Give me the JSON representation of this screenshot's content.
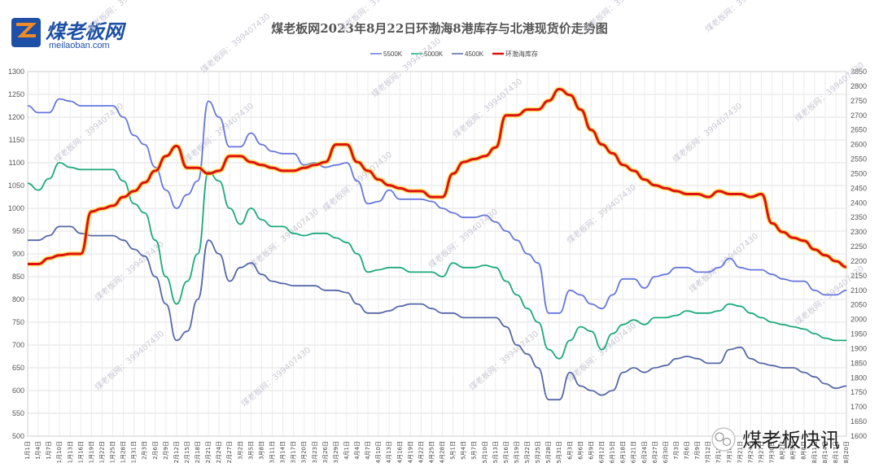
{
  "brand": {
    "name_cn": "煤老板网",
    "domain": "meilaoban.com",
    "wechat_label": "煤老板快讯",
    "watermark_text": "煤老板网：399407430",
    "watermark_id": "399407430"
  },
  "colors": {
    "s5500": "#6677dd",
    "s5000": "#1aaa7a",
    "s4500": "#5568a8",
    "inventory": "#e01010",
    "brand_blue": "#1d4fa6",
    "brand_orange": "#f08a24"
  },
  "chart_data": {
    "type": "line",
    "title": "煤老板网2023年8月22日环渤海8港库存与北港现货价走势图",
    "left_axis": {
      "ylim": [
        500,
        1300
      ],
      "step": 50
    },
    "right_axis": {
      "ylim": [
        1600,
        2850
      ],
      "step": 50
    },
    "x": [
      "1月1日",
      "1月4日",
      "1月7日",
      "1月10日",
      "1月13日",
      "1月16日",
      "1月19日",
      "1月22日",
      "1月25日",
      "1月28日",
      "1月31日",
      "2月3日",
      "2月6日",
      "2月9日",
      "2月12日",
      "2月15日",
      "2月18日",
      "2月21日",
      "2月24日",
      "2月27日",
      "3月2日",
      "3月5日",
      "3月8日",
      "3月11日",
      "3月14日",
      "3月17日",
      "3月20日",
      "3月23日",
      "3月26日",
      "3月29日",
      "4月1日",
      "4月4日",
      "4月7日",
      "4月10日",
      "4月13日",
      "4月16日",
      "4月19日",
      "4月22日",
      "4月25日",
      "4月28日",
      "5月1日",
      "5月4日",
      "5月7日",
      "5月10日",
      "5月13日",
      "5月16日",
      "5月19日",
      "5月22日",
      "5月25日",
      "5月28日",
      "5月31日",
      "6月3日",
      "6月6日",
      "6月9日",
      "6月12日",
      "6月15日",
      "6月18日",
      "6月21日",
      "6月24日",
      "6月27日",
      "6月30日",
      "7月3日",
      "7月6日",
      "7月9日",
      "7月12日",
      "7月15日",
      "7月18日",
      "7月21日",
      "7月24日",
      "7月27日",
      "7月30日",
      "8月2日",
      "8月5日",
      "8月8日",
      "8月11日",
      "8月14日",
      "8月17日",
      "8月20日"
    ],
    "series": [
      {
        "name": "5500K",
        "axis": "left",
        "color": "#6677dd",
        "values": [
          1225,
          1210,
          1210,
          1240,
          1235,
          1225,
          1225,
          1225,
          1225,
          1200,
          1160,
          1140,
          1090,
          1040,
          1000,
          1030,
          1060,
          1235,
          1200,
          1135,
          1135,
          1165,
          1140,
          1125,
          1120,
          1120,
          1095,
          1100,
          1090,
          1095,
          1100,
          1060,
          1010,
          1015,
          1040,
          1020,
          1020,
          1020,
          1015,
          1000,
          990,
          980,
          980,
          985,
          970,
          950,
          930,
          900,
          880,
          770,
          770,
          820,
          810,
          790,
          780,
          810,
          845,
          845,
          825,
          850,
          855,
          870,
          870,
          860,
          860,
          870,
          890,
          870,
          865,
          865,
          855,
          845,
          840,
          840,
          820,
          810,
          810,
          820
        ]
      },
      {
        "name": "5000K",
        "axis": "left",
        "color": "#1aaa7a",
        "values": [
          1055,
          1040,
          1065,
          1100,
          1090,
          1085,
          1085,
          1085,
          1085,
          1060,
          1010,
          990,
          930,
          850,
          790,
          840,
          900,
          1080,
          1060,
          1000,
          965,
          1000,
          975,
          960,
          960,
          945,
          940,
          945,
          945,
          935,
          925,
          900,
          860,
          865,
          870,
          870,
          860,
          860,
          860,
          850,
          880,
          870,
          870,
          875,
          870,
          840,
          810,
          780,
          750,
          690,
          670,
          710,
          740,
          730,
          690,
          725,
          745,
          755,
          745,
          760,
          760,
          765,
          775,
          770,
          770,
          775,
          790,
          785,
          770,
          760,
          750,
          745,
          740,
          735,
          725,
          715,
          710,
          710
        ]
      },
      {
        "name": "4500K",
        "axis": "left",
        "color": "#5568a8",
        "values": [
          930,
          930,
          940,
          960,
          960,
          945,
          940,
          940,
          940,
          930,
          910,
          895,
          850,
          790,
          710,
          730,
          800,
          930,
          900,
          840,
          870,
          880,
          855,
          840,
          835,
          830,
          830,
          830,
          820,
          820,
          815,
          790,
          770,
          770,
          775,
          785,
          790,
          790,
          780,
          770,
          770,
          760,
          760,
          760,
          760,
          740,
          700,
          680,
          650,
          580,
          580,
          640,
          610,
          600,
          590,
          600,
          640,
          650,
          640,
          650,
          655,
          670,
          675,
          670,
          660,
          660,
          690,
          695,
          670,
          660,
          655,
          650,
          650,
          640,
          630,
          615,
          605,
          610
        ]
      },
      {
        "name": "环渤海库存",
        "axis": "right",
        "color": "#e01010",
        "values": [
          2190,
          2190,
          2210,
          2220,
          2225,
          2225,
          2370,
          2380,
          2390,
          2420,
          2440,
          2470,
          2510,
          2560,
          2595,
          2520,
          2520,
          2500,
          2510,
          2560,
          2560,
          2540,
          2530,
          2520,
          2510,
          2510,
          2520,
          2530,
          2540,
          2600,
          2600,
          2540,
          2510,
          2480,
          2460,
          2450,
          2440,
          2440,
          2420,
          2420,
          2500,
          2540,
          2550,
          2560,
          2590,
          2700,
          2700,
          2720,
          2720,
          2750,
          2790,
          2770,
          2720,
          2650,
          2600,
          2570,
          2530,
          2510,
          2480,
          2460,
          2450,
          2440,
          2430,
          2430,
          2420,
          2440,
          2430,
          2430,
          2420,
          2430,
          2330,
          2300,
          2280,
          2270,
          2240,
          2220,
          2200,
          2180
        ]
      }
    ]
  }
}
